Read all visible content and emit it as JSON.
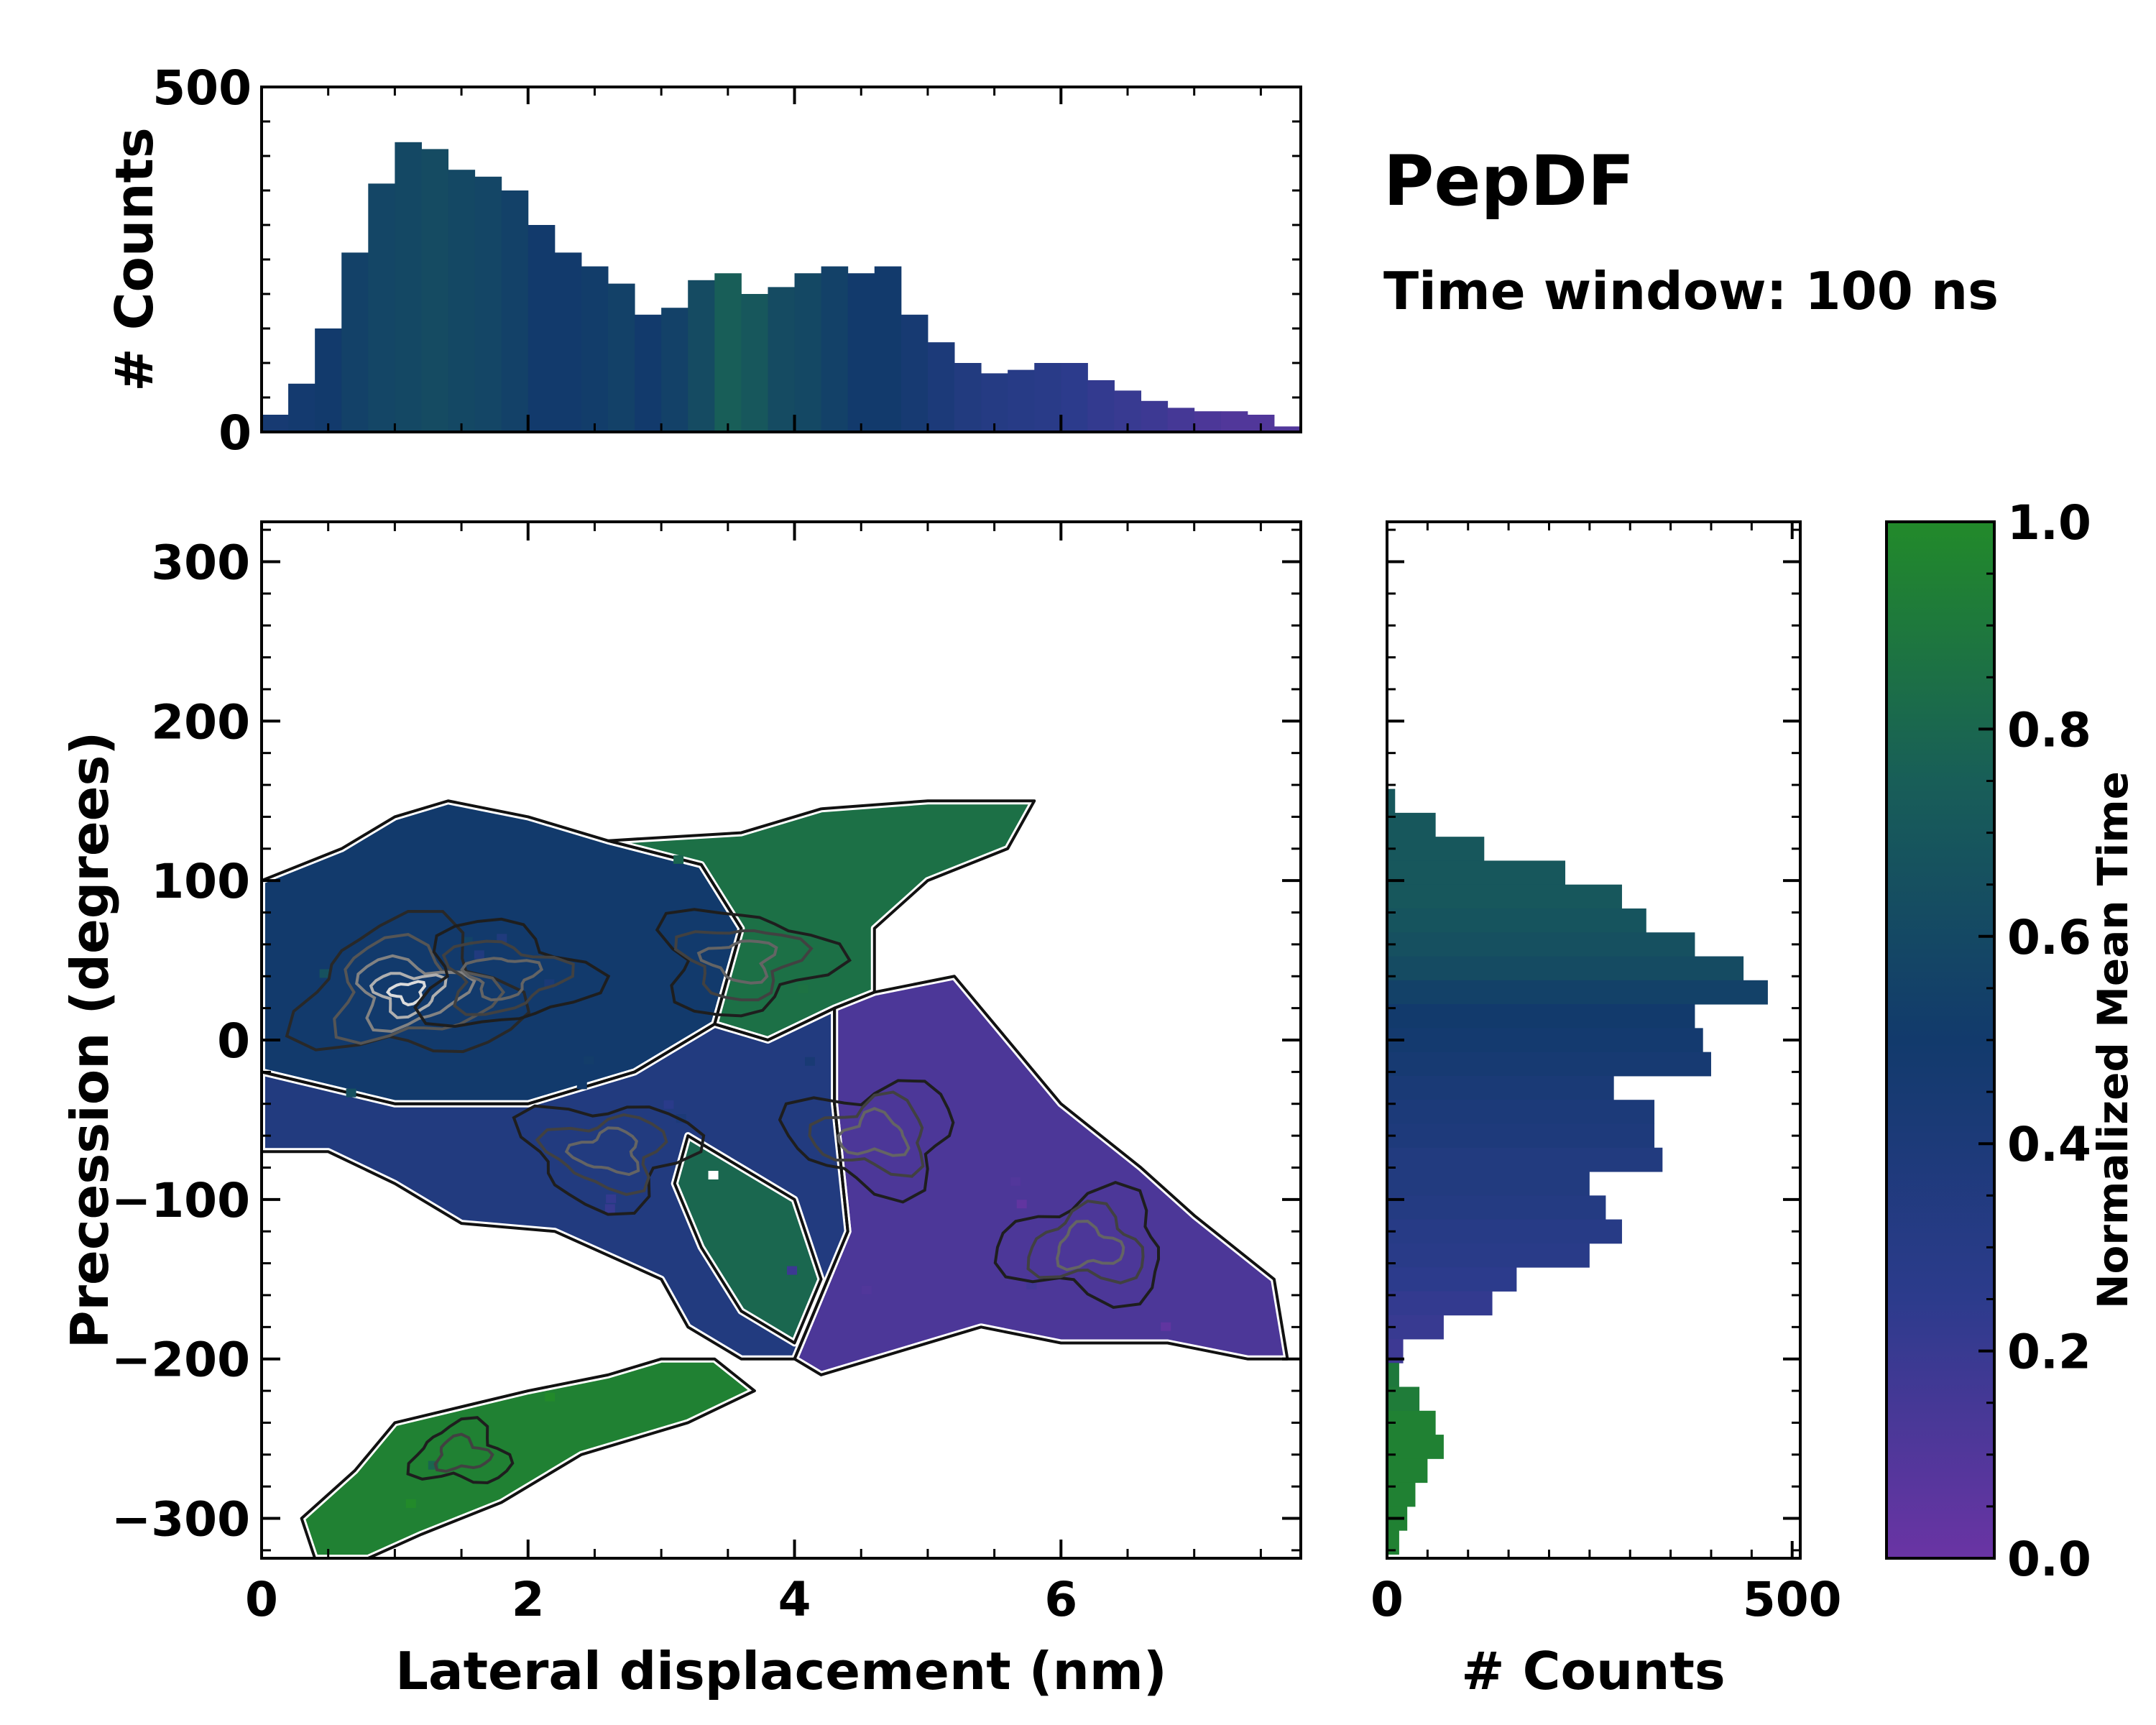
{
  "figure": {
    "title": "PepDF",
    "subtitle": "Time window: 100 ns"
  },
  "colors": {
    "low": "#6a34a4",
    "mid_low": "#2c3b8c",
    "mid": "#123a6c",
    "mid_high": "#185e58",
    "high": "#228a2a",
    "contour_dark": "#111111",
    "contour_light": "#dddddd",
    "outline": "#ffffff"
  },
  "chart_data": [
    {
      "id": "top-histogram",
      "type": "bar",
      "xlabel": "",
      "ylabel": "# Counts",
      "xlim": [
        0,
        7.8
      ],
      "ylim": [
        0,
        500
      ],
      "yticks": [
        0,
        500
      ],
      "x": [
        0.1,
        0.3,
        0.5,
        0.7,
        0.9,
        1.1,
        1.3,
        1.5,
        1.7,
        1.9,
        2.1,
        2.3,
        2.5,
        2.7,
        2.9,
        3.1,
        3.3,
        3.5,
        3.7,
        3.9,
        4.1,
        4.3,
        4.5,
        4.7,
        4.9,
        5.1,
        5.3,
        5.5,
        5.7,
        5.9,
        6.1,
        6.3,
        6.5,
        6.7,
        6.9,
        7.1,
        7.3,
        7.5,
        7.7
      ],
      "values": [
        25,
        70,
        150,
        260,
        360,
        420,
        410,
        380,
        370,
        350,
        300,
        260,
        240,
        215,
        170,
        180,
        220,
        230,
        200,
        210,
        230,
        240,
        230,
        240,
        170,
        130,
        100,
        85,
        90,
        100,
        100,
        75,
        60,
        45,
        35,
        30,
        30,
        25,
        8
      ],
      "color_by_time": [
        0.45,
        0.48,
        0.5,
        0.55,
        0.58,
        0.6,
        0.62,
        0.6,
        0.58,
        0.55,
        0.5,
        0.5,
        0.52,
        0.55,
        0.5,
        0.55,
        0.62,
        0.75,
        0.7,
        0.62,
        0.6,
        0.55,
        0.5,
        0.5,
        0.45,
        0.4,
        0.35,
        0.32,
        0.3,
        0.28,
        0.25,
        0.22,
        0.2,
        0.18,
        0.15,
        0.12,
        0.1,
        0.1,
        0.1
      ]
    },
    {
      "id": "main-2d-histogram",
      "type": "heatmap",
      "xlabel": "Lateral displacement (nm)",
      "ylabel": "Precession (degrees)",
      "xlim": [
        0,
        7.8
      ],
      "ylim": [
        -325,
        325
      ],
      "xticks": [
        0,
        2,
        4,
        6
      ],
      "xtick_labels": [
        "0",
        "2",
        "4",
        "6"
      ],
      "yticks": [
        300,
        200,
        100,
        0,
        -100,
        -200,
        -300
      ],
      "ytick_labels": [
        "300",
        "200",
        "100",
        "0",
        "−100",
        "−200",
        "−300"
      ],
      "regions": [
        {
          "name": "upper-left-blue",
          "value": 0.5,
          "polygon": [
            [
              0,
              100
            ],
            [
              0.6,
              120
            ],
            [
              1,
              140
            ],
            [
              1.4,
              150
            ],
            [
              2,
              140
            ],
            [
              2.6,
              125
            ],
            [
              3.3,
              110
            ],
            [
              3.6,
              70
            ],
            [
              3.4,
              10
            ],
            [
              2.8,
              -20
            ],
            [
              2,
              -40
            ],
            [
              1,
              -40
            ],
            [
              0,
              -20
            ]
          ]
        },
        {
          "name": "upper-green",
          "value": 0.85,
          "polygon": [
            [
              2.6,
              125
            ],
            [
              3.6,
              130
            ],
            [
              4.2,
              145
            ],
            [
              5,
              150
            ],
            [
              5.8,
              150
            ],
            [
              5.6,
              120
            ],
            [
              5,
              100
            ],
            [
              4.6,
              70
            ],
            [
              4.6,
              30
            ],
            [
              4.3,
              20
            ],
            [
              3.8,
              0
            ],
            [
              3.4,
              10
            ],
            [
              3.6,
              70
            ],
            [
              3.3,
              110
            ]
          ]
        },
        {
          "name": "right-purple",
          "value": 0.12,
          "polygon": [
            [
              4.6,
              30
            ],
            [
              5.2,
              40
            ],
            [
              5.6,
              0
            ],
            [
              6,
              -40
            ],
            [
              6.6,
              -80
            ],
            [
              7,
              -110
            ],
            [
              7.6,
              -150
            ],
            [
              7.7,
              -200
            ],
            [
              7.4,
              -200
            ],
            [
              6.8,
              -190
            ],
            [
              6,
              -190
            ],
            [
              5.4,
              -180
            ],
            [
              4.6,
              -200
            ],
            [
              4.2,
              -210
            ],
            [
              4,
              -200
            ],
            [
              4.4,
              -120
            ],
            [
              4.3,
              -40
            ],
            [
              4.3,
              20
            ]
          ]
        },
        {
          "name": "middle-mixed",
          "value": 0.35,
          "polygon": [
            [
              0,
              -20
            ],
            [
              1,
              -40
            ],
            [
              2,
              -40
            ],
            [
              2.8,
              -20
            ],
            [
              3.4,
              10
            ],
            [
              3.8,
              0
            ],
            [
              4.3,
              20
            ],
            [
              4.3,
              -40
            ],
            [
              4.4,
              -120
            ],
            [
              4,
              -200
            ],
            [
              3.6,
              -200
            ],
            [
              3.2,
              -180
            ],
            [
              3,
              -150
            ],
            [
              2.2,
              -120
            ],
            [
              1.5,
              -115
            ],
            [
              1,
              -90
            ],
            [
              0.5,
              -70
            ],
            [
              0,
              -70
            ]
          ]
        },
        {
          "name": "middle-green-patch",
          "value": 0.8,
          "polygon": [
            [
              3.2,
              -60
            ],
            [
              3.6,
              -80
            ],
            [
              4,
              -100
            ],
            [
              4.2,
              -150
            ],
            [
              4,
              -190
            ],
            [
              3.6,
              -170
            ],
            [
              3.3,
              -130
            ],
            [
              3.1,
              -90
            ]
          ]
        },
        {
          "name": "lower-green-band",
          "value": 0.95,
          "polygon": [
            [
              0.3,
              -300
            ],
            [
              0.7,
              -270
            ],
            [
              1,
              -240
            ],
            [
              1.5,
              -230
            ],
            [
              2,
              -220
            ],
            [
              2.6,
              -210
            ],
            [
              3,
              -200
            ],
            [
              3.4,
              -200
            ],
            [
              3.7,
              -220
            ],
            [
              3.2,
              -240
            ],
            [
              2.4,
              -260
            ],
            [
              1.8,
              -290
            ],
            [
              1.2,
              -310
            ],
            [
              0.8,
              -325
            ],
            [
              0.4,
              -325
            ]
          ]
        }
      ],
      "contour_centers": [
        {
          "x": 1.1,
          "y": 30,
          "level": "high"
        },
        {
          "x": 1.8,
          "y": 40,
          "level": "mid"
        },
        {
          "x": 3.6,
          "y": 50,
          "level": "mid"
        },
        {
          "x": 2.6,
          "y": -70,
          "level": "mid"
        },
        {
          "x": 4.6,
          "y": -60,
          "level": "mid"
        },
        {
          "x": 6.2,
          "y": -130,
          "level": "mid"
        },
        {
          "x": 1.5,
          "y": -260,
          "level": "low"
        }
      ]
    },
    {
      "id": "right-histogram",
      "type": "bar",
      "orientation": "horizontal",
      "xlabel": "# Counts",
      "ylabel": "",
      "xlim": [
        0,
        510
      ],
      "xticks": [
        0,
        500
      ],
      "ylim": [
        -325,
        325
      ],
      "y": [
        150,
        135,
        120,
        105,
        90,
        75,
        60,
        45,
        30,
        15,
        0,
        -15,
        -30,
        -45,
        -60,
        -75,
        -90,
        -105,
        -120,
        -135,
        -150,
        -165,
        -180,
        -195,
        -210,
        -225,
        -240,
        -255,
        -270,
        -285,
        -300,
        -315
      ],
      "values": [
        10,
        60,
        120,
        220,
        290,
        320,
        380,
        440,
        470,
        380,
        390,
        400,
        280,
        330,
        330,
        340,
        250,
        270,
        290,
        250,
        160,
        130,
        70,
        20,
        15,
        40,
        60,
        70,
        50,
        35,
        25,
        15
      ],
      "color_by_time": [
        0.7,
        0.7,
        0.7,
        0.7,
        0.7,
        0.68,
        0.65,
        0.62,
        0.55,
        0.5,
        0.48,
        0.45,
        0.42,
        0.4,
        0.38,
        0.35,
        0.35,
        0.33,
        0.3,
        0.28,
        0.25,
        0.22,
        0.2,
        0.18,
        0.9,
        0.92,
        0.95,
        0.95,
        0.95,
        0.95,
        0.95,
        0.95
      ]
    },
    {
      "id": "colorbar",
      "type": "colorbar",
      "label": "Normalized Mean Time",
      "ticks": [
        0.0,
        0.2,
        0.4,
        0.6,
        0.8,
        1.0
      ],
      "tick_labels": [
        "0.0",
        "0.2",
        "0.4",
        "0.6",
        "0.8",
        "1.0"
      ]
    }
  ]
}
